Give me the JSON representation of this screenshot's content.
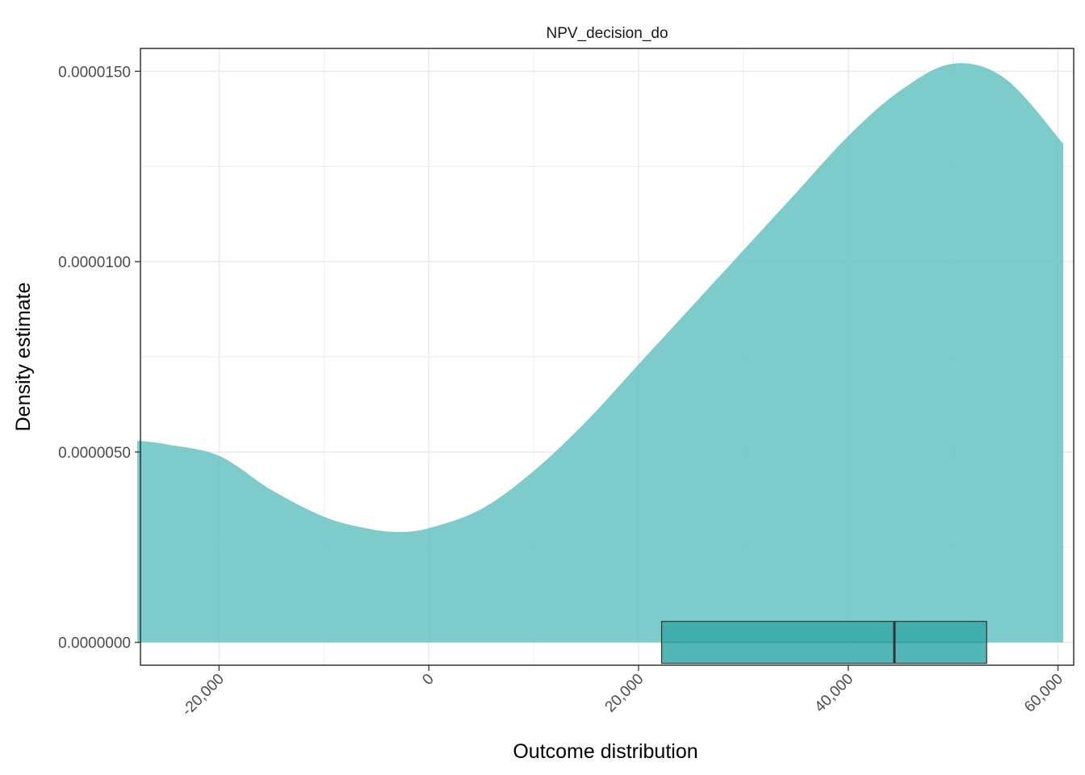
{
  "chart_data": {
    "type": "area",
    "facet_title": "NPV_decision_do",
    "xlabel": "Outcome distribution",
    "ylabel": "Density estimate",
    "xlim": [
      -27500,
      61500
    ],
    "ylim": [
      -6e-07,
      1.56e-05
    ],
    "x_ticks": [
      -20000,
      0,
      20000,
      40000,
      60000
    ],
    "x_tick_labels": [
      "-20,000",
      "0",
      "20,000",
      "40,000",
      "60,000"
    ],
    "y_ticks": [
      0,
      5e-06,
      1e-05,
      1.5e-05
    ],
    "y_tick_labels": [
      "0.0000000",
      "0.0000050",
      "0.0000100",
      "0.0000150"
    ],
    "grid": true,
    "colors": {
      "fill": "#66c2c2",
      "box_fill": "#36a9a9",
      "grid": "#ebebeb",
      "border": "#333333"
    },
    "density": {
      "x": [
        -27800,
        -25000,
        -20000,
        -15000,
        -10000,
        -6000,
        -3000,
        0,
        5000,
        10000,
        15000,
        20000,
        25000,
        30000,
        35000,
        40000,
        45000,
        50000,
        55000,
        60500
      ],
      "y": [
        5.3e-06,
        5.2e-06,
        4.9e-06,
        4e-06,
        3.3e-06,
        3e-06,
        2.9e-06,
        3e-06,
        3.5e-06,
        4.5e-06,
        5.8e-06,
        7.3e-06,
        8.8e-06,
        1.03e-05,
        1.18e-05,
        1.33e-05,
        1.45e-05,
        1.52e-05,
        1.48e-05,
        1.31e-05
      ]
    },
    "boxplot": {
      "q1": 22200,
      "median": 44400,
      "q3": 53200
    }
  }
}
